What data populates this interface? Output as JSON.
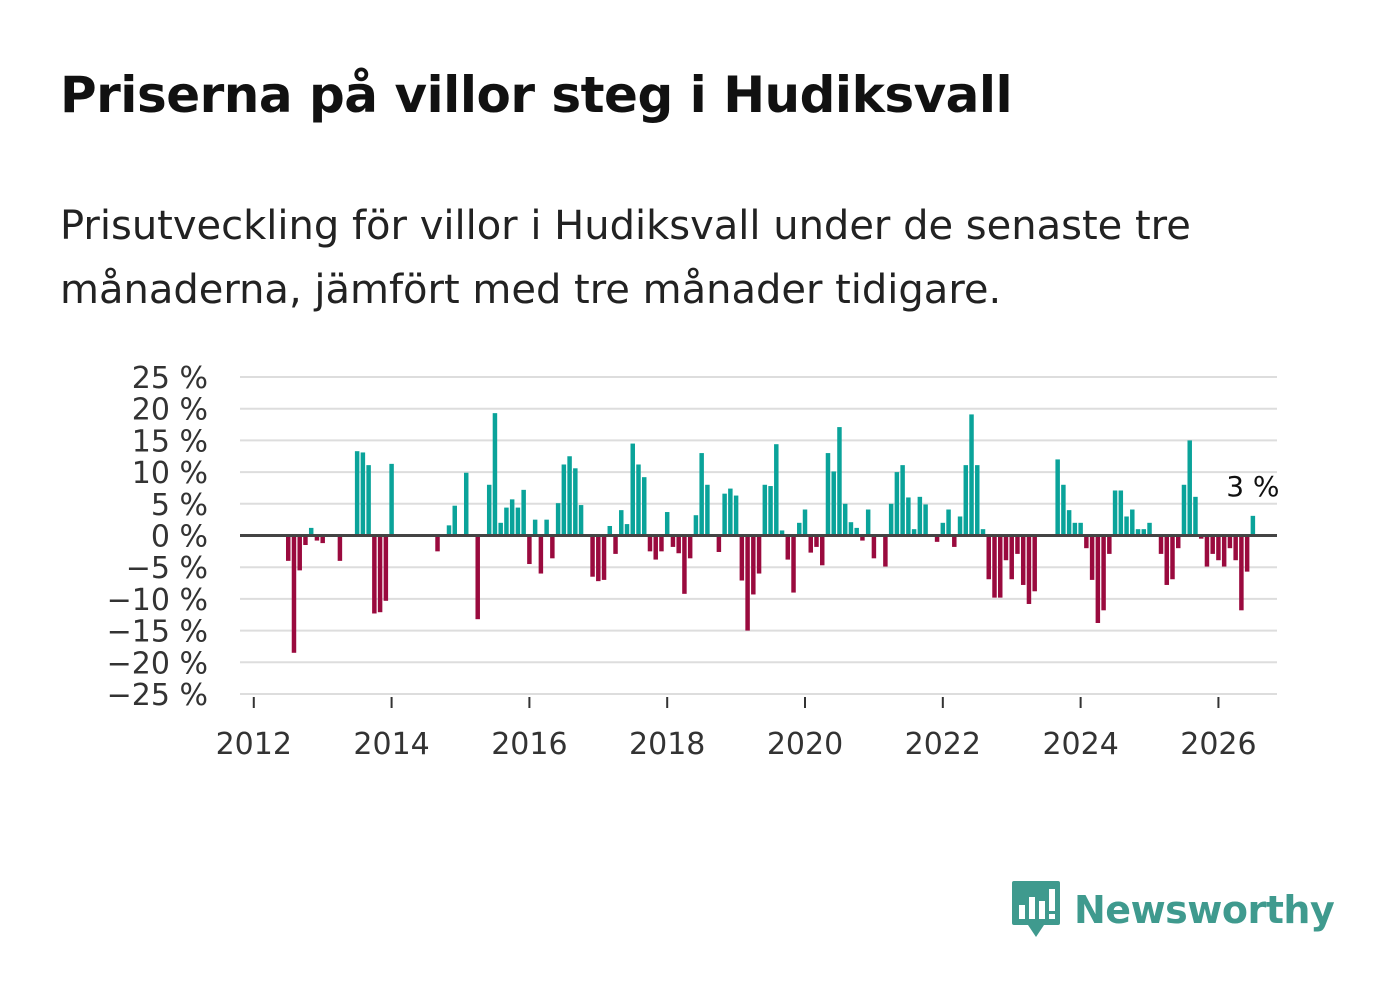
{
  "header": {
    "title": "Priserna på villor steg i Hudiksvall",
    "subtitle": "Prisutveckling för villor i Hudiksvall under de senaste tre månaderna, jämfört med tre månader tidigare."
  },
  "brand": {
    "name": "Newsworthy",
    "color": "#3f9a8e"
  },
  "colors": {
    "positive": "#0aa39a",
    "negative": "#9a0a3e",
    "grid": "#dddddd",
    "zero_line": "#444444"
  },
  "chart_data": {
    "type": "bar",
    "title": "Priserna på villor steg i Hudiksvall",
    "xlabel": "",
    "ylabel": "",
    "ylim": [
      -25,
      25
    ],
    "xlim": [
      2011.8,
      2026.85
    ],
    "y_ticks": [
      25,
      20,
      15,
      10,
      5,
      0,
      -5,
      -10,
      -15,
      -20,
      -25
    ],
    "y_tick_labels": [
      "25 %",
      "20 %",
      "15 %",
      "10 %",
      "5 %",
      "0 %",
      "−5 %",
      "−10 %",
      "−15 %",
      "−20 %",
      "−25 %"
    ],
    "x_ticks": [
      2012,
      2014,
      2016,
      2018,
      2020,
      2022,
      2024,
      2026
    ],
    "x_tick_labels": [
      "2012",
      "2014",
      "2016",
      "2018",
      "2020",
      "2022",
      "2024",
      "2026"
    ],
    "end_label": "3 %",
    "series": [
      {
        "name": "Prisutveckling",
        "start": 2012.5,
        "step_months": 1,
        "values": [
          -4,
          -18.5,
          -5.5,
          -1.5,
          1.2,
          -0.8,
          -1.2,
          0,
          0,
          -4,
          0,
          0,
          13.3,
          13.1,
          11.1,
          -12.3,
          -12.1,
          -10.3,
          11.3,
          0,
          0,
          0,
          0,
          0,
          0,
          0,
          -2.5,
          0,
          1.6,
          4.7,
          0,
          9.9,
          0,
          -13.2,
          0,
          8,
          19.3,
          2,
          4.4,
          5.7,
          4.4,
          7.2,
          -4.5,
          2.5,
          -6,
          2.5,
          -3.6,
          5.1,
          11.2,
          12.5,
          10.6,
          4.8,
          0,
          -6.5,
          -7.2,
          -7,
          1.5,
          -2.9,
          4,
          1.8,
          14.5,
          11.2,
          9.2,
          -2.5,
          -3.8,
          -2.5,
          3.7,
          -1.8,
          -2.8,
          -9.2,
          -3.6,
          3.2,
          13,
          8,
          0,
          -2.6,
          6.6,
          7.4,
          6.3,
          -7.1,
          -15,
          -9.3,
          -6,
          8,
          7.8,
          14.4,
          0.8,
          -3.8,
          -9,
          2,
          4.1,
          -2.7,
          -1.8,
          -4.7,
          13,
          10.1,
          17.1,
          5,
          2.1,
          1.2,
          -0.8,
          4.1,
          -3.6,
          0,
          -4.9,
          5,
          10,
          11.1,
          6,
          1,
          6.1,
          4.9,
          0,
          -1,
          2,
          4.1,
          -1.8,
          3,
          11.1,
          19.1,
          11.1,
          1,
          -6.9,
          -9.8,
          -9.8,
          -3.9,
          -6.9,
          -2.9,
          -7.8,
          -10.8,
          -8.8,
          0,
          0,
          0,
          12,
          8,
          4,
          2,
          2,
          -2,
          -7,
          -13.8,
          -11.8,
          -2.9,
          7.1,
          7.1,
          3,
          4.1,
          1,
          1,
          2,
          0,
          -2.9,
          -7.8,
          -6.9,
          -2,
          8,
          15,
          6.1,
          -0.5,
          -4.9,
          -2.9,
          -3.9,
          -4.9,
          -2,
          -3.9,
          -11.8,
          -5.7,
          3.1
        ]
      }
    ]
  }
}
